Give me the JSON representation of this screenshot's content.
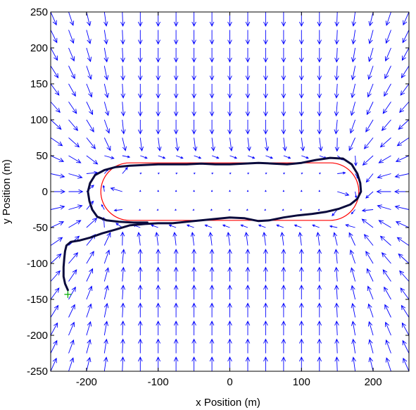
{
  "chart_data": {
    "type": "quiver",
    "xlabel": "x Position (m)",
    "ylabel": "y Position (m)",
    "xlim": [
      -250,
      250
    ],
    "ylim": [
      -250,
      250
    ],
    "xticks": [
      -200,
      -100,
      0,
      100,
      200
    ],
    "yticks": [
      250,
      200,
      150,
      100,
      50,
      0,
      -50,
      -100,
      -150,
      -200,
      -250
    ],
    "grid": false,
    "colors": {
      "vector_field": "#0000ff",
      "reference_path": "#ff0000",
      "trajectory": "#0a0a3c",
      "start_marker": "#00aa00"
    },
    "vector_field": {
      "x_range": [
        -250,
        250
      ],
      "y_range": [
        -250,
        250
      ],
      "grid_step": 25,
      "description_free": true
    },
    "reference_path": {
      "shape": "stadium",
      "straight_x": [
        -140,
        140
      ],
      "radius": 40,
      "center_y": 0
    },
    "trajectory": {
      "points": [
        [
          -226,
          -137
        ],
        [
          -230,
          -128
        ],
        [
          -232,
          -118
        ],
        [
          -232,
          -105
        ],
        [
          -231,
          -93
        ],
        [
          -230,
          -83
        ],
        [
          -228,
          -75
        ],
        [
          -222,
          -70
        ],
        [
          -210,
          -68
        ],
        [
          -195,
          -64
        ],
        [
          -178,
          -58
        ],
        [
          -160,
          -53
        ],
        [
          -140,
          -47
        ],
        [
          -118,
          -45
        ],
        [
          -100,
          -44
        ],
        [
          -80,
          -44
        ],
        [
          -60,
          -42
        ],
        [
          -40,
          -40
        ],
        [
          -20,
          -38
        ],
        [
          0,
          -36
        ],
        [
          20,
          -37
        ],
        [
          40,
          -41
        ],
        [
          55,
          -40
        ],
        [
          75,
          -36
        ],
        [
          95,
          -33
        ],
        [
          115,
          -31
        ],
        [
          135,
          -28
        ],
        [
          152,
          -24
        ],
        [
          168,
          -18
        ],
        [
          178,
          -10
        ],
        [
          183,
          0
        ],
        [
          182,
          12
        ],
        [
          178,
          25
        ],
        [
          170,
          38
        ],
        [
          158,
          46
        ],
        [
          140,
          47
        ],
        [
          120,
          44
        ],
        [
          100,
          40
        ],
        [
          80,
          38
        ],
        [
          60,
          39
        ],
        [
          40,
          40
        ],
        [
          20,
          39
        ],
        [
          0,
          38
        ],
        [
          -20,
          38
        ],
        [
          -40,
          39
        ],
        [
          -60,
          38
        ],
        [
          -80,
          38
        ],
        [
          -100,
          38
        ],
        [
          -120,
          37
        ],
        [
          -140,
          36
        ],
        [
          -160,
          34
        ],
        [
          -175,
          30
        ],
        [
          -188,
          23
        ],
        [
          -195,
          12
        ],
        [
          -198,
          0
        ],
        [
          -196,
          -13
        ],
        [
          -192,
          -25
        ],
        [
          -185,
          -35
        ],
        [
          -172,
          -40
        ],
        [
          -155,
          -42
        ],
        [
          -135,
          -43
        ],
        [
          -115,
          -43
        ]
      ],
      "start": [
        -226,
        -143
      ]
    }
  }
}
